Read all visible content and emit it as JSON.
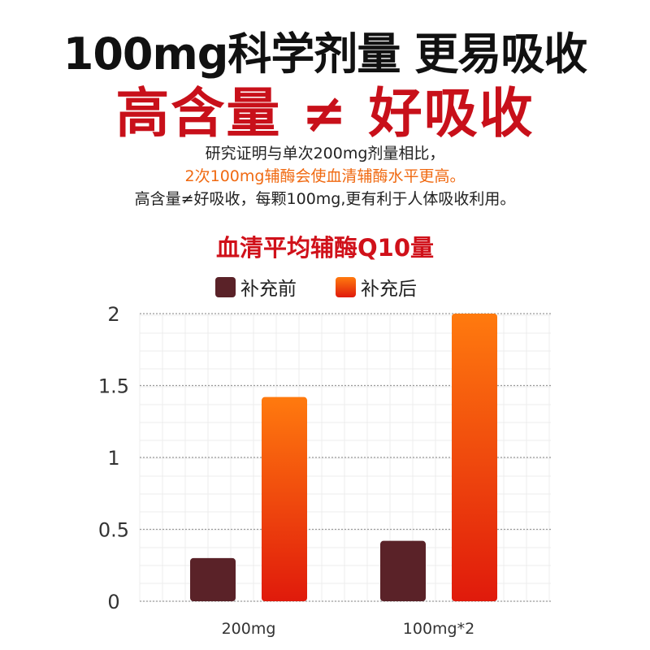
{
  "header": {
    "line1": "100mg科学剂量 更易吸收",
    "line2": "高含量 ≠ 好吸收"
  },
  "description": {
    "line1": "研究证明与单次200mg剂量相比，",
    "line2": "2次100mg辅酶会使血清辅酶水平更高。",
    "line3": "高含量≠好吸收，每颗100mg,更有利于人体吸收利用。"
  },
  "colors": {
    "headline_dark": "#111111",
    "headline_red": "#c8101a",
    "highlight_orange": "#f06a12",
    "before_bar": "#5a2228",
    "after_bar_top": "#ff7a0e",
    "after_bar_bottom": "#e01a0c"
  },
  "chart_data": {
    "type": "bar",
    "title": "血清平均辅酶Q10量",
    "categories": [
      "200mg",
      "100mg*2"
    ],
    "series": [
      {
        "name": "补充前",
        "values": [
          0.3,
          0.42
        ]
      },
      {
        "name": "补充后",
        "values": [
          1.42,
          2.0
        ]
      }
    ],
    "ylim": [
      0,
      2
    ],
    "yticks": [
      "0",
      "0.5",
      "1",
      "1.5",
      "2"
    ],
    "grid": true,
    "legend_position": "top"
  }
}
